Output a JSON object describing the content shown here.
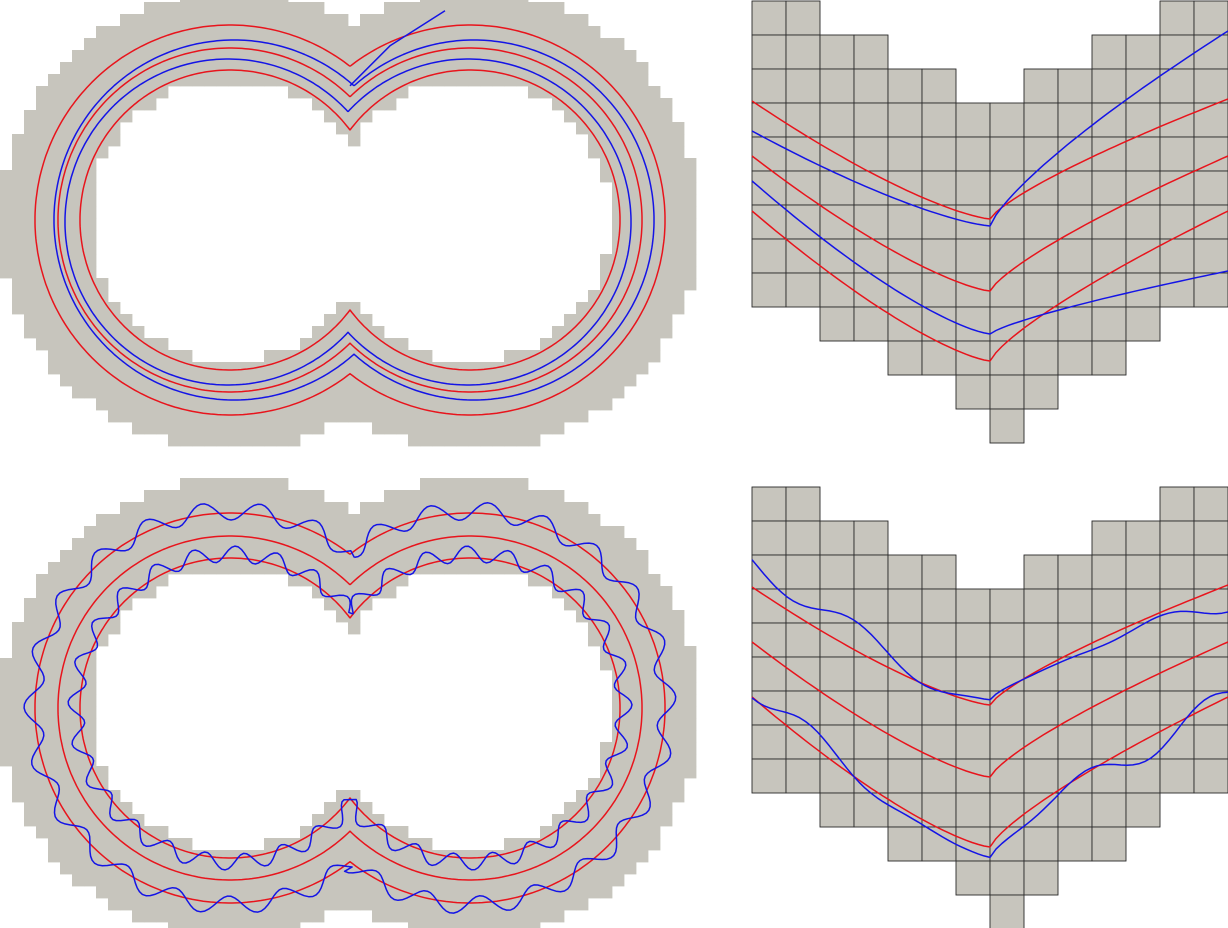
{
  "figure": {
    "panels": [
      {
        "id": "top-left",
        "kind": "domain-overview",
        "variant": "smooth"
      },
      {
        "id": "top-right",
        "kind": "cusp-mesh-zoom",
        "variant": "smooth"
      },
      {
        "id": "bottom-left",
        "kind": "domain-overview",
        "variant": "oscillating"
      },
      {
        "id": "bottom-right",
        "kind": "cusp-mesh-zoom",
        "variant": "oscillating"
      }
    ],
    "colors": {
      "domain": "#c7c5bd",
      "mesh_edge": "#2a2a2a",
      "reference_curve": "#e8141c",
      "computed_curve": "#1414e6",
      "background": "#ffffff"
    }
  }
}
